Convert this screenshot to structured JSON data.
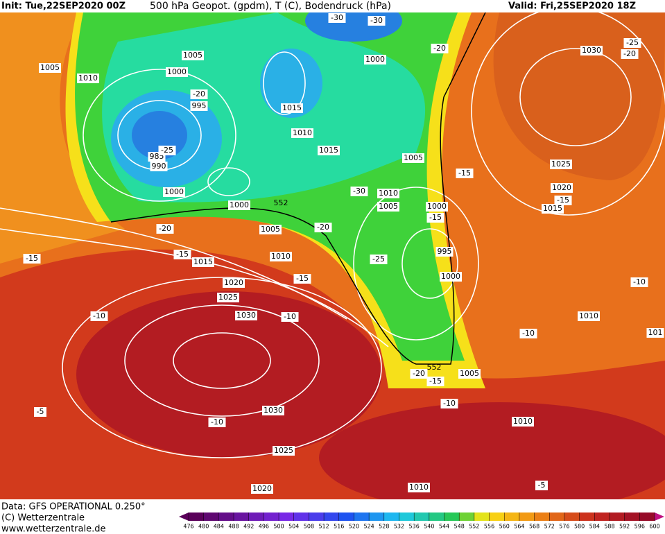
{
  "header": {
    "init": "Init: Tue,22SEP2020 00Z",
    "title": "500 hPa Geopot. (gpdm), T (C), Bodendruck (hPa)",
    "valid": "Valid: Fri,25SEP2020 18Z"
  },
  "footer": {
    "source": "Data: GFS OPERATIONAL 0.250°",
    "copyright": "(C) Wetterzentrale",
    "url": "www.wetterzentrale.de"
  },
  "colorbar": {
    "ticks": [
      476,
      480,
      484,
      488,
      492,
      496,
      500,
      504,
      508,
      512,
      516,
      520,
      524,
      528,
      532,
      536,
      540,
      544,
      548,
      552,
      556,
      560,
      564,
      568,
      572,
      576,
      580,
      584,
      588,
      592,
      596,
      600
    ]
  },
  "map": {
    "pressure_labels": [
      "1005",
      "1005",
      "1010",
      "1000",
      "995",
      "985",
      "990",
      "1000",
      "1000",
      "1005",
      "1010",
      "1015",
      "1020",
      "1025",
      "1030",
      "1030",
      "1025",
      "1020",
      "1010",
      "1010",
      "1005",
      "1010",
      "1015",
      "1020",
      "1025",
      "1030",
      "1000",
      "1015",
      "1010",
      "1015",
      "1005",
      "1010",
      "1005",
      "1000",
      "995",
      "1000",
      "101"
    ],
    "temperature_labels": [
      "-30",
      "-30",
      "-20",
      "-25",
      "-20",
      "-20",
      "-25",
      "-15",
      "-15",
      "-30",
      "-15",
      "-20",
      "-20",
      "-15",
      "-15",
      "-25",
      "-15",
      "-10",
      "-10",
      "-10",
      "-10",
      "-20",
      "-15",
      "-10",
      "-5",
      "-10",
      "-5"
    ],
    "geopotential_labels": [
      "552",
      "552"
    ]
  }
}
